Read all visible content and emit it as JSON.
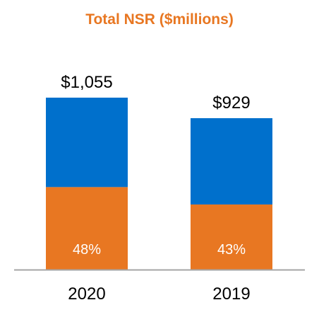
{
  "chart_data": {
    "type": "bar",
    "stacked": true,
    "title": "Total NSR ($millions)",
    "categories": [
      "2020",
      "2019"
    ],
    "totals": [
      1055,
      929
    ],
    "total_labels": [
      "$1,055",
      "$929"
    ],
    "series": [
      {
        "values": [
          506.4,
          399.5
        ],
        "labels": [
          "48%",
          "43%"
        ],
        "color": "#E87722"
      },
      {
        "values": [
          548.6,
          529.5
        ],
        "color": "#0070CC"
      }
    ],
    "ylim": [
      0,
      1055
    ],
    "grid": false,
    "legend": "none",
    "colors": {
      "title": "#E87722",
      "axis": "#A6A6A6"
    }
  }
}
